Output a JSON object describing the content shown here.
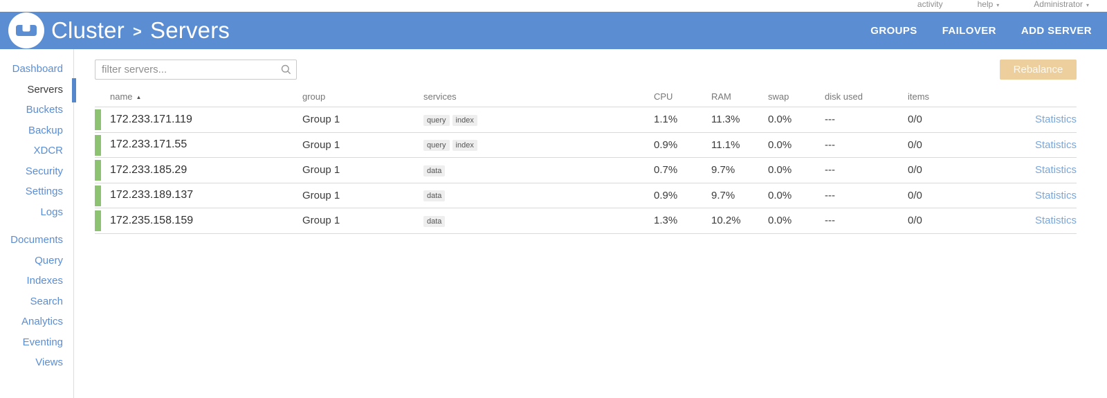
{
  "topbar": {
    "activity_label": "activity",
    "help_label": "help",
    "user_label": "Administrator"
  },
  "header": {
    "breadcrumb": {
      "root": "Cluster",
      "separator": ">",
      "current": "Servers"
    },
    "menu": [
      {
        "id": "groups",
        "label": "GROUPS"
      },
      {
        "id": "failover",
        "label": "FAILOVER"
      },
      {
        "id": "add-server",
        "label": "ADD SERVER"
      }
    ]
  },
  "sidebar": {
    "groups": [
      {
        "items": [
          {
            "id": "dashboard",
            "label": "Dashboard",
            "active": false
          },
          {
            "id": "servers",
            "label": "Servers",
            "active": true
          },
          {
            "id": "buckets",
            "label": "Buckets",
            "active": false
          },
          {
            "id": "backup",
            "label": "Backup",
            "active": false
          },
          {
            "id": "xdcr",
            "label": "XDCR",
            "active": false
          },
          {
            "id": "security",
            "label": "Security",
            "active": false
          },
          {
            "id": "settings",
            "label": "Settings",
            "active": false
          },
          {
            "id": "logs",
            "label": "Logs",
            "active": false
          }
        ]
      },
      {
        "items": [
          {
            "id": "documents",
            "label": "Documents",
            "active": false
          },
          {
            "id": "query",
            "label": "Query",
            "active": false
          },
          {
            "id": "indexes",
            "label": "Indexes",
            "active": false
          },
          {
            "id": "search",
            "label": "Search",
            "active": false
          },
          {
            "id": "analytics",
            "label": "Analytics",
            "active": false
          },
          {
            "id": "eventing",
            "label": "Eventing",
            "active": false
          },
          {
            "id": "views",
            "label": "Views",
            "active": false
          }
        ]
      }
    ]
  },
  "toolbar": {
    "filter_placeholder": "filter servers...",
    "rebalance_label": "Rebalance"
  },
  "table": {
    "headers": {
      "name": "name",
      "group": "group",
      "services": "services",
      "cpu": "CPU",
      "ram": "RAM",
      "swap": "swap",
      "disk_used": "disk used",
      "items": "items"
    },
    "sort": {
      "column": "name",
      "direction": "asc"
    },
    "rows": [
      {
        "name": "172.233.171.119",
        "group": "Group 1",
        "services": [
          "query",
          "index"
        ],
        "cpu": "1.1%",
        "ram": "11.3%",
        "swap": "0.0%",
        "disk_used": "---",
        "items": "0/0",
        "stats_label": "Statistics",
        "health": "healthy"
      },
      {
        "name": "172.233.171.55",
        "group": "Group 1",
        "services": [
          "query",
          "index"
        ],
        "cpu": "0.9%",
        "ram": "11.1%",
        "swap": "0.0%",
        "disk_used": "---",
        "items": "0/0",
        "stats_label": "Statistics",
        "health": "healthy"
      },
      {
        "name": "172.233.185.29",
        "group": "Group 1",
        "services": [
          "data"
        ],
        "cpu": "0.7%",
        "ram": "9.7%",
        "swap": "0.0%",
        "disk_used": "---",
        "items": "0/0",
        "stats_label": "Statistics",
        "health": "healthy"
      },
      {
        "name": "172.233.189.137",
        "group": "Group 1",
        "services": [
          "data"
        ],
        "cpu": "0.9%",
        "ram": "9.7%",
        "swap": "0.0%",
        "disk_used": "---",
        "items": "0/0",
        "stats_label": "Statistics",
        "health": "healthy"
      },
      {
        "name": "172.235.158.159",
        "group": "Group 1",
        "services": [
          "data"
        ],
        "cpu": "1.3%",
        "ram": "10.2%",
        "swap": "0.0%",
        "disk_used": "---",
        "items": "0/0",
        "stats_label": "Statistics",
        "health": "healthy"
      }
    ]
  },
  "colors": {
    "header_blue": "#5b8dd3",
    "link_blue": "#5b8dd3",
    "stats_link_blue": "#7ba6da",
    "health_green": "#8cc271",
    "rebalance_disabled_bg": "#eccf9d",
    "badge_bg": "#eeeeee"
  }
}
